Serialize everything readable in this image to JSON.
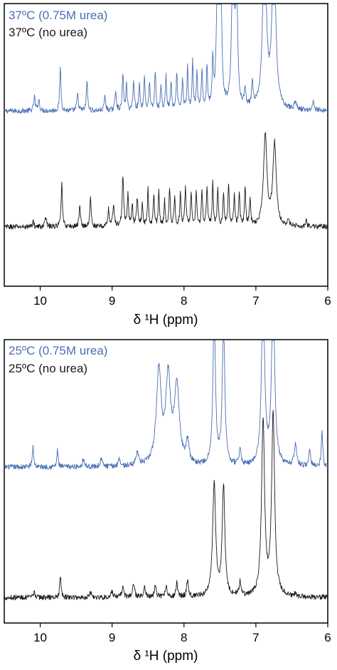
{
  "chart_data": [
    {
      "type": "line",
      "title": "",
      "xlabel": "δ ¹H (ppm)",
      "ylabel": "",
      "xlim": [
        10.5,
        6
      ],
      "x_reversed": true,
      "ticks": [
        "10",
        "9",
        "8",
        "7",
        "6"
      ],
      "grid": false,
      "legend_position": "top-left",
      "series": [
        {
          "name": "37ºC (0.75M urea)",
          "color": "#4a6fb5",
          "baseline": 0.62,
          "peaks": [
            [
              10.08,
              0.05,
              0.012
            ],
            [
              10.02,
              0.04,
              0.012
            ],
            [
              9.72,
              0.16,
              0.01
            ],
            [
              9.48,
              0.06,
              0.012
            ],
            [
              9.35,
              0.11,
              0.01
            ],
            [
              9.1,
              0.05,
              0.012
            ],
            [
              8.95,
              0.07,
              0.012
            ],
            [
              8.85,
              0.13,
              0.01
            ],
            [
              8.8,
              0.09,
              0.01
            ],
            [
              8.7,
              0.1,
              0.012
            ],
            [
              8.62,
              0.09,
              0.01
            ],
            [
              8.55,
              0.12,
              0.01
            ],
            [
              8.48,
              0.1,
              0.01
            ],
            [
              8.4,
              0.14,
              0.01
            ],
            [
              8.32,
              0.09,
              0.01
            ],
            [
              8.25,
              0.12,
              0.01
            ],
            [
              8.18,
              0.1,
              0.01
            ],
            [
              8.1,
              0.13,
              0.01
            ],
            [
              8.02,
              0.11,
              0.01
            ],
            [
              7.95,
              0.15,
              0.01
            ],
            [
              7.88,
              0.17,
              0.01
            ],
            [
              7.82,
              0.13,
              0.01
            ],
            [
              7.75,
              0.14,
              0.01
            ],
            [
              7.68,
              0.15,
              0.01
            ],
            [
              7.6,
              0.16,
              0.01
            ],
            [
              7.53,
              0.55,
              0.018
            ],
            [
              7.49,
              0.5,
              0.015
            ],
            [
              7.32,
              0.6,
              0.018
            ],
            [
              7.27,
              0.55,
              0.015
            ],
            [
              7.15,
              0.07,
              0.012
            ],
            [
              7.05,
              0.08,
              0.012
            ],
            [
              6.88,
              0.62,
              0.028
            ],
            [
              6.75,
              0.62,
              0.028
            ],
            [
              6.45,
              0.03,
              0.015
            ],
            [
              6.2,
              0.03,
              0.015
            ]
          ]
        },
        {
          "name": "37ºC (no urea)",
          "color": "#1a1a1a",
          "baseline": 0.21,
          "peaks": [
            [
              10.1,
              0.02,
              0.012
            ],
            [
              9.92,
              0.04,
              0.012
            ],
            [
              9.7,
              0.16,
              0.01
            ],
            [
              9.45,
              0.07,
              0.012
            ],
            [
              9.3,
              0.11,
              0.01
            ],
            [
              9.05,
              0.06,
              0.012
            ],
            [
              8.98,
              0.08,
              0.012
            ],
            [
              8.85,
              0.18,
              0.012
            ],
            [
              8.78,
              0.11,
              0.01
            ],
            [
              8.72,
              0.08,
              0.01
            ],
            [
              8.65,
              0.1,
              0.012
            ],
            [
              8.58,
              0.08,
              0.01
            ],
            [
              8.5,
              0.13,
              0.01
            ],
            [
              8.42,
              0.11,
              0.01
            ],
            [
              8.35,
              0.12,
              0.01
            ],
            [
              8.27,
              0.09,
              0.01
            ],
            [
              8.2,
              0.13,
              0.01
            ],
            [
              8.13,
              0.1,
              0.01
            ],
            [
              8.05,
              0.12,
              0.01
            ],
            [
              7.98,
              0.13,
              0.012
            ],
            [
              7.9,
              0.12,
              0.01
            ],
            [
              7.83,
              0.13,
              0.01
            ],
            [
              7.75,
              0.12,
              0.01
            ],
            [
              7.68,
              0.14,
              0.01
            ],
            [
              7.6,
              0.15,
              0.01
            ],
            [
              7.53,
              0.13,
              0.01
            ],
            [
              7.45,
              0.12,
              0.01
            ],
            [
              7.38,
              0.15,
              0.01
            ],
            [
              7.3,
              0.11,
              0.01
            ],
            [
              7.23,
              0.12,
              0.01
            ],
            [
              7.15,
              0.14,
              0.01
            ],
            [
              7.08,
              0.1,
              0.01
            ],
            [
              6.87,
              0.32,
              0.028
            ],
            [
              6.74,
              0.29,
              0.028
            ],
            [
              6.55,
              0.02,
              0.012
            ],
            [
              6.3,
              0.02,
              0.012
            ]
          ]
        }
      ]
    },
    {
      "type": "line",
      "title": "",
      "xlabel": "δ ¹H (ppm)",
      "ylabel": "",
      "xlim": [
        10.5,
        6
      ],
      "x_reversed": true,
      "ticks": [
        "10",
        "9",
        "8",
        "7",
        "6"
      ],
      "grid": false,
      "legend_position": "top-left",
      "series": [
        {
          "name": "25ºC (0.75M urea)",
          "color": "#4a6fb5",
          "baseline": 0.55,
          "peaks": [
            [
              10.1,
              0.07,
              0.012
            ],
            [
              9.76,
              0.06,
              0.01
            ],
            [
              9.4,
              0.03,
              0.015
            ],
            [
              9.15,
              0.03,
              0.015
            ],
            [
              8.9,
              0.03,
              0.015
            ],
            [
              8.65,
              0.05,
              0.02
            ],
            [
              8.35,
              0.33,
              0.04
            ],
            [
              8.22,
              0.3,
              0.04
            ],
            [
              8.1,
              0.28,
              0.04
            ],
            [
              7.95,
              0.08,
              0.025
            ],
            [
              7.58,
              0.55,
              0.02
            ],
            [
              7.45,
              0.52,
              0.02
            ],
            [
              7.22,
              0.06,
              0.015
            ],
            [
              6.9,
              0.62,
              0.025
            ],
            [
              6.76,
              0.62,
              0.025
            ],
            [
              6.45,
              0.08,
              0.02
            ],
            [
              6.25,
              0.06,
              0.015
            ],
            [
              6.08,
              0.12,
              0.012
            ]
          ]
        },
        {
          "name": "25ºC (no urea)",
          "color": "#1a1a1a",
          "baseline": 0.09,
          "peaks": [
            [
              10.08,
              0.02,
              0.012
            ],
            [
              9.72,
              0.08,
              0.01
            ],
            [
              9.3,
              0.02,
              0.015
            ],
            [
              9.0,
              0.02,
              0.015
            ],
            [
              8.85,
              0.04,
              0.015
            ],
            [
              8.7,
              0.05,
              0.015
            ],
            [
              8.55,
              0.04,
              0.015
            ],
            [
              8.4,
              0.04,
              0.015
            ],
            [
              8.25,
              0.04,
              0.015
            ],
            [
              8.1,
              0.05,
              0.015
            ],
            [
              7.95,
              0.06,
              0.015
            ],
            [
              7.58,
              0.4,
              0.025
            ],
            [
              7.45,
              0.39,
              0.022
            ],
            [
              7.22,
              0.05,
              0.015
            ],
            [
              6.9,
              0.62,
              0.025
            ],
            [
              6.76,
              0.64,
              0.025
            ],
            [
              6.45,
              0.01,
              0.015
            ]
          ]
        }
      ]
    }
  ]
}
